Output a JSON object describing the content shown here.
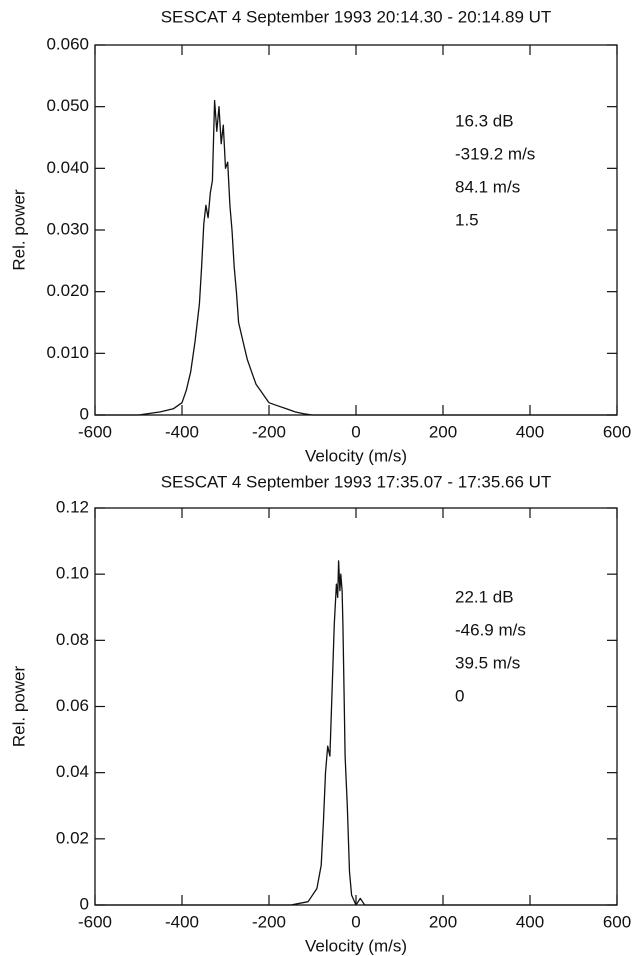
{
  "chart_data": [
    {
      "type": "line",
      "title": "SESCAT 4 September 1993 20:14.30 - 20:14.89 UT",
      "x_label": "Velocity (m/s)",
      "y_label": "Rel. power",
      "annotations": [
        "16.3 dB",
        "-319.2 m/s",
        "84.1 m/s",
        "1.5"
      ],
      "xlim": [
        -600,
        600
      ],
      "xticks": [
        -600,
        -400,
        -200,
        0,
        200,
        400,
        600
      ],
      "ylim": [
        0,
        0.06
      ],
      "yticks": [
        0,
        {
          "value": 0.01,
          "label": "0.010"
        },
        {
          "value": 0.02,
          "label": "0.020"
        },
        {
          "value": 0.03,
          "label": "0.030"
        },
        {
          "value": 0.04,
          "label": "0.040"
        },
        {
          "value": 0.05,
          "label": "0.050"
        },
        {
          "value": 0.06,
          "label": "0.060"
        }
      ],
      "color": "#111111",
      "x": [
        -600,
        -500,
        -450,
        -420,
        -400,
        -390,
        -380,
        -370,
        -360,
        -355,
        -350,
        -345,
        -340,
        -335,
        -330,
        -325,
        -320,
        -315,
        -310,
        -305,
        -300,
        -295,
        -290,
        -285,
        -280,
        -275,
        -270,
        -260,
        -250,
        -240,
        -230,
        -220,
        -210,
        -200,
        -180,
        -160,
        -140,
        -120,
        -100,
        0,
        600
      ],
      "values": [
        0,
        0,
        0.0005,
        0.001,
        0.002,
        0.004,
        0.007,
        0.012,
        0.018,
        0.024,
        0.031,
        0.034,
        0.032,
        0.036,
        0.038,
        0.051,
        0.046,
        0.05,
        0.044,
        0.047,
        0.04,
        0.041,
        0.034,
        0.03,
        0.024,
        0.02,
        0.015,
        0.012,
        0.009,
        0.007,
        0.005,
        0.004,
        0.003,
        0.002,
        0.0015,
        0.001,
        0.0005,
        0.0002,
        0,
        0,
        0
      ]
    },
    {
      "type": "line",
      "title": "SESCAT 4 September 1993 17:35.07 - 17:35.66 UT",
      "x_label": "Velocity (m/s)",
      "y_label": "Rel. power",
      "annotations": [
        "22.1 dB",
        "-46.9 m/s",
        "39.5 m/s",
        "0"
      ],
      "xlim": [
        -600,
        600
      ],
      "xticks": [
        -600,
        -400,
        -200,
        0,
        200,
        400,
        600
      ],
      "ylim": [
        0,
        0.12
      ],
      "yticks": [
        0,
        0.02,
        0.04,
        0.06,
        0.08,
        {
          "value": 0.1,
          "label": "0.10"
        },
        0.12
      ],
      "color": "#111111",
      "x": [
        -600,
        -150,
        -110,
        -90,
        -80,
        -75,
        -70,
        -65,
        -60,
        -55,
        -50,
        -45,
        -42,
        -40,
        -37,
        -35,
        -32,
        -30,
        -27,
        -25,
        -20,
        -15,
        -10,
        0,
        5,
        10,
        15,
        20,
        600
      ],
      "values": [
        0,
        0,
        0.001,
        0.005,
        0.012,
        0.025,
        0.04,
        0.048,
        0.045,
        0.065,
        0.085,
        0.097,
        0.093,
        0.104,
        0.095,
        0.1,
        0.095,
        0.085,
        0.06,
        0.045,
        0.03,
        0.01,
        0.003,
        0,
        0.001,
        0.002,
        0.001,
        0,
        0
      ]
    }
  ]
}
